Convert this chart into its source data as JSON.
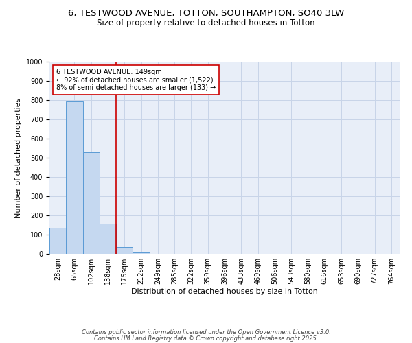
{
  "title_line1": "6, TESTWOOD AVENUE, TOTTON, SOUTHAMPTON, SO40 3LW",
  "title_line2": "Size of property relative to detached houses in Totton",
  "xlabel": "Distribution of detached houses by size in Totton",
  "ylabel": "Number of detached properties",
  "bar_labels": [
    "28sqm",
    "65sqm",
    "102sqm",
    "138sqm",
    "175sqm",
    "212sqm",
    "249sqm",
    "285sqm",
    "322sqm",
    "359sqm",
    "396sqm",
    "433sqm",
    "469sqm",
    "506sqm",
    "543sqm",
    "580sqm",
    "616sqm",
    "653sqm",
    "690sqm",
    "727sqm",
    "764sqm"
  ],
  "bar_values": [
    135,
    795,
    530,
    157,
    35,
    8,
    0,
    0,
    0,
    0,
    0,
    0,
    0,
    0,
    0,
    0,
    0,
    0,
    0,
    0,
    0
  ],
  "bar_color": "#c5d8f0",
  "bar_edge_color": "#5b9bd5",
  "grid_color": "#c8d4e8",
  "background_color": "#e8eef8",
  "vline_color": "#cc0000",
  "annotation_text": "6 TESTWOOD AVENUE: 149sqm\n← 92% of detached houses are smaller (1,522)\n8% of semi-detached houses are larger (133) →",
  "annotation_box_color": "#ffffff",
  "annotation_box_edge": "#cc0000",
  "ylim": [
    0,
    1000
  ],
  "yticks": [
    0,
    100,
    200,
    300,
    400,
    500,
    600,
    700,
    800,
    900,
    1000
  ],
  "footnote_line1": "Contains HM Land Registry data © Crown copyright and database right 2025.",
  "footnote_line2": "Contains public sector information licensed under the Open Government Licence v3.0.",
  "title_fontsize": 9.5,
  "subtitle_fontsize": 8.5,
  "tick_fontsize": 7,
  "label_fontsize": 8,
  "annotation_fontsize": 7,
  "footnote_fontsize": 6
}
